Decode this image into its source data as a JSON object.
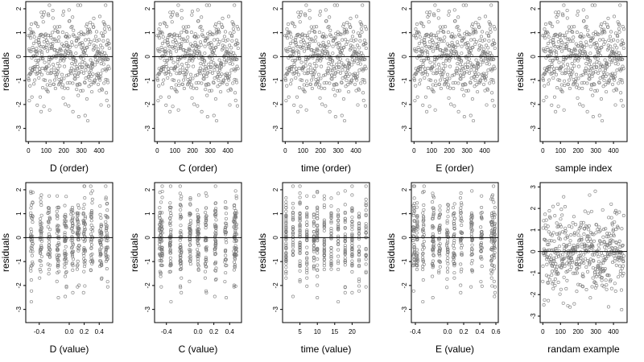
{
  "style": {
    "point_color": "#777777",
    "point_opacity": 0.85,
    "line_color": "#000000"
  },
  "chart_data": [
    {
      "type": "scatter",
      "title": "",
      "xlabel": "D (order)",
      "ylabel": "residuals",
      "xlim": [
        -15,
        477
      ],
      "ylim": [
        -3.55,
        2.3
      ],
      "xticks": [
        0,
        100,
        200,
        300,
        400
      ],
      "xtick_labels": [
        "0",
        "100",
        "200",
        "300",
        "400"
      ],
      "yticks": [
        -3,
        -2,
        -1,
        0,
        1,
        2
      ],
      "ytick_labels": [
        "-3",
        "-2",
        "-1",
        "0",
        "1",
        "2"
      ],
      "hline": 0,
      "points": []
    },
    {
      "type": "scatter",
      "title": "",
      "xlabel": "C (order)",
      "ylabel": "residuals",
      "xlim": [
        -15,
        477
      ],
      "ylim": [
        -3.55,
        2.3
      ],
      "xticks": [
        0,
        100,
        200,
        300,
        400
      ],
      "xtick_labels": [
        "0",
        "100",
        "200",
        "300",
        "400"
      ],
      "yticks": [
        -3,
        -2,
        -1,
        0,
        1,
        2
      ],
      "ytick_labels": [
        "-3",
        "-2",
        "-1",
        "0",
        "1",
        "2"
      ],
      "hline": 0,
      "points": []
    },
    {
      "type": "scatter",
      "title": "",
      "xlabel": "time (order)",
      "ylabel": "residuals",
      "xlim": [
        -15,
        477
      ],
      "ylim": [
        -3.55,
        2.3
      ],
      "xticks": [
        0,
        100,
        200,
        300,
        400
      ],
      "xtick_labels": [
        "0",
        "100",
        "200",
        "300",
        "400"
      ],
      "yticks": [
        -3,
        -2,
        -1,
        0,
        1,
        2
      ],
      "ytick_labels": [
        "-3",
        "-2",
        "-1",
        "0",
        "1",
        "2"
      ],
      "hline": 0,
      "points": []
    },
    {
      "type": "scatter",
      "title": "",
      "xlabel": "E (order)",
      "ylabel": "residuals",
      "xlim": [
        -15,
        477
      ],
      "ylim": [
        -3.55,
        2.3
      ],
      "xticks": [
        0,
        100,
        200,
        300,
        400
      ],
      "xtick_labels": [
        "0",
        "100",
        "200",
        "300",
        "400"
      ],
      "yticks": [
        -3,
        -2,
        -1,
        0,
        1,
        2
      ],
      "ytick_labels": [
        "-3",
        "-2",
        "-1",
        "0",
        "1",
        "2"
      ],
      "hline": 0,
      "points": []
    },
    {
      "type": "scatter",
      "title": "",
      "xlabel": "sample index",
      "ylabel": "residuals",
      "xlim": [
        -15,
        477
      ],
      "ylim": [
        -3.55,
        2.3
      ],
      "xticks": [
        0,
        100,
        200,
        300,
        400
      ],
      "xtick_labels": [
        "0",
        "100",
        "200",
        "300",
        "400"
      ],
      "yticks": [
        -3,
        -2,
        -1,
        0,
        1,
        2
      ],
      "ytick_labels": [
        "-3",
        "-2",
        "-1",
        "0",
        "1",
        "2"
      ],
      "hline": 0,
      "points": []
    },
    {
      "type": "scatter",
      "title": "",
      "xlabel": "D (value)",
      "ylabel": "residuals",
      "xlim": [
        -0.58,
        0.58
      ],
      "ylim": [
        -3.55,
        2.3
      ],
      "xticks": [
        -0.4,
        0.0,
        0.2,
        0.4
      ],
      "xtick_labels": [
        "-0.4",
        "0.0",
        "0.2",
        "0.4"
      ],
      "yticks": [
        -3,
        -2,
        -1,
        0,
        1,
        2
      ],
      "ytick_labels": [
        "-3",
        "-2",
        "-1",
        "0",
        "1",
        "2"
      ],
      "hline": 0,
      "points": []
    },
    {
      "type": "scatter",
      "title": "",
      "xlabel": "C (value)",
      "ylabel": "residuals",
      "xlim": [
        -0.55,
        0.55
      ],
      "ylim": [
        -3.55,
        2.3
      ],
      "xticks": [
        -0.4,
        0.0,
        0.2,
        0.4
      ],
      "xtick_labels": [
        "-0.4",
        "0.0",
        "0.2",
        "0.4"
      ],
      "yticks": [
        -3,
        -2,
        -1,
        0,
        1,
        2
      ],
      "ytick_labels": [
        "-3",
        "-2",
        "-1",
        "0",
        "1",
        "2"
      ],
      "hline": 0,
      "points": []
    },
    {
      "type": "scatter",
      "title": "",
      "xlabel": "time (value)",
      "ylabel": "residuals",
      "xlim": [
        0,
        25
      ],
      "ylim": [
        -3.55,
        2.3
      ],
      "xticks": [
        5,
        10,
        15,
        20
      ],
      "xtick_labels": [
        "5",
        "10",
        "15",
        "20"
      ],
      "yticks": [
        -3,
        -2,
        -1,
        0,
        1,
        2
      ],
      "ytick_labels": [
        "-3",
        "-2",
        "-1",
        "0",
        "1",
        "2"
      ],
      "hline": 0,
      "points": []
    },
    {
      "type": "scatter",
      "title": "",
      "xlabel": "E (value)",
      "ylabel": "residuals",
      "xlim": [
        -0.45,
        0.63
      ],
      "ylim": [
        -3.55,
        2.3
      ],
      "xticks": [
        -0.4,
        0.0,
        0.2,
        0.4,
        0.6
      ],
      "xtick_labels": [
        "-0.4",
        "0.0",
        "0.2",
        "0.4",
        "0.6"
      ],
      "yticks": [
        -3,
        -2,
        -1,
        0,
        1,
        2
      ],
      "ytick_labels": [
        "-3",
        "-2",
        "-1",
        "0",
        "1",
        "2"
      ],
      "hline": 0,
      "points": []
    },
    {
      "type": "scatter",
      "title": "",
      "xlabel": "randam example",
      "ylabel": "residuals",
      "xlim": [
        -15,
        477
      ],
      "ylim": [
        -3.3,
        3.2
      ],
      "xticks": [
        0,
        100,
        200,
        300,
        400
      ],
      "xtick_labels": [
        "0",
        "100",
        "200",
        "300",
        "400"
      ],
      "yticks": [
        -3,
        -2,
        -1,
        0,
        1,
        2,
        3
      ],
      "ytick_labels": [
        "-3",
        "-2",
        "-1",
        "0",
        "1",
        "2",
        "3"
      ],
      "hline": 0,
      "points": []
    }
  ]
}
